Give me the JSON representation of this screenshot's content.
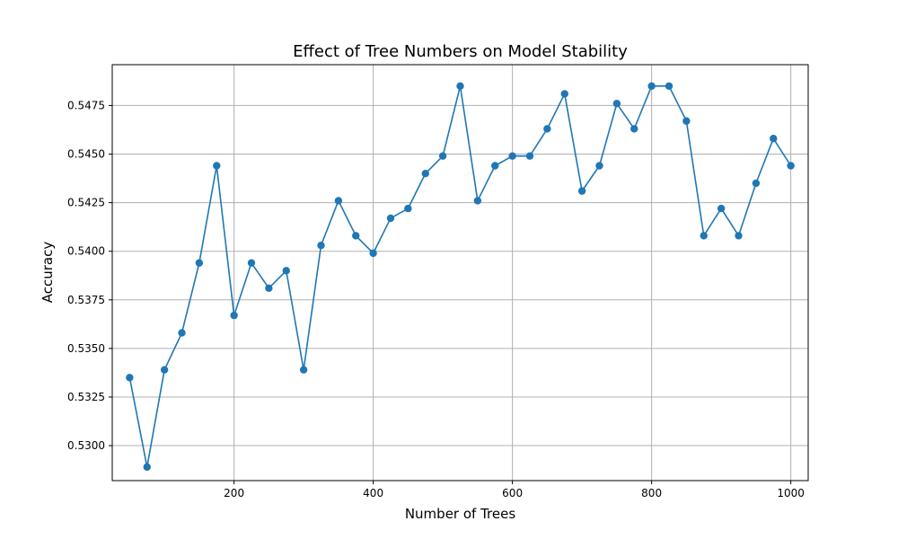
{
  "chart_data": {
    "type": "line",
    "title": "Effect of Tree Numbers on Model Stability",
    "xlabel": "Number of Trees",
    "ylabel": "Accuracy",
    "xlim": [
      25,
      1025
    ],
    "ylim": [
      0.5282,
      0.5496
    ],
    "grid": true,
    "x_ticks": [
      200,
      400,
      600,
      800,
      1000
    ],
    "x_tick_labels": [
      "200",
      "400",
      "600",
      "800",
      "1000"
    ],
    "y_ticks": [
      0.53,
      0.5325,
      0.535,
      0.5375,
      0.54,
      0.5425,
      0.545,
      0.5475
    ],
    "y_tick_labels": [
      "0.5300",
      "0.5325",
      "0.5350",
      "0.5375",
      "0.5400",
      "0.5425",
      "0.5450",
      "0.5475"
    ],
    "series": [
      {
        "color": "#1f77b4",
        "marker": "circle",
        "x": [
          50,
          75,
          100,
          125,
          150,
          175,
          200,
          225,
          250,
          275,
          300,
          325,
          350,
          375,
          400,
          425,
          450,
          475,
          500,
          525,
          550,
          575,
          600,
          625,
          650,
          675,
          700,
          725,
          750,
          775,
          800,
          825,
          850,
          875,
          900,
          925,
          950,
          975,
          1000
        ],
        "y": [
          0.5335,
          0.5289,
          0.5339,
          0.5358,
          0.5394,
          0.5444,
          0.5367,
          0.5394,
          0.5381,
          0.539,
          0.5339,
          0.5403,
          0.5426,
          0.5408,
          0.5399,
          0.5417,
          0.5422,
          0.544,
          0.5449,
          0.5485,
          0.5426,
          0.5444,
          0.5449,
          0.5449,
          0.5463,
          0.5481,
          0.5431,
          0.5444,
          0.5476,
          0.5463,
          0.5485,
          0.5485,
          0.5467,
          0.5408,
          0.5422,
          0.5408,
          0.5435,
          0.5458,
          0.5444
        ]
      }
    ]
  }
}
